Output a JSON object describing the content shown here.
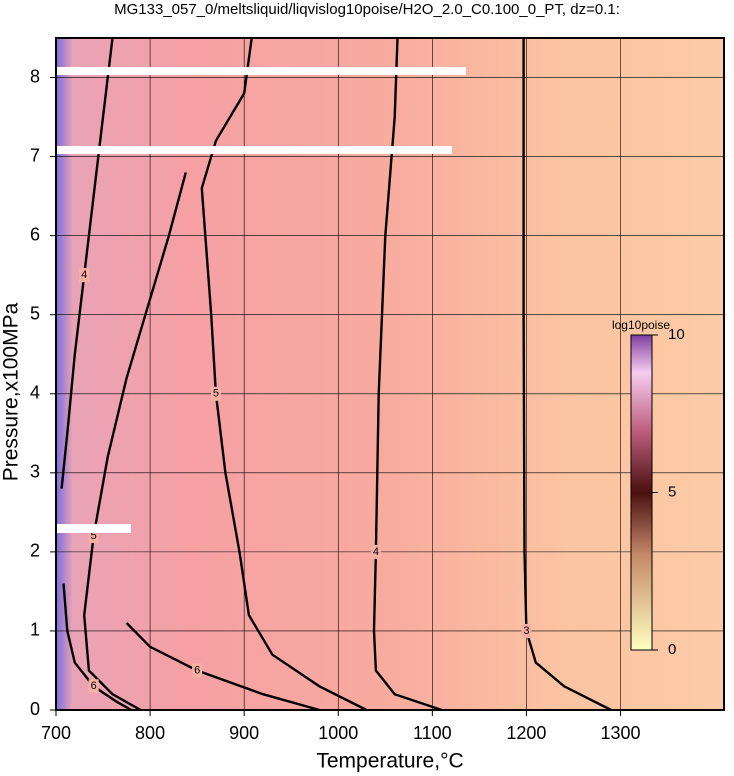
{
  "chart_data": {
    "type": "contour",
    "title": "MG133_057_0/meltsliquid/liqvislog10poise/H2O_2.0_C0.100_0_PT, dz=0.1:",
    "xlabel": "Temperature,°C",
    "ylabel": "Pressure,x100MPa",
    "xlim": [
      700,
      1410
    ],
    "ylim": [
      0,
      8.5
    ],
    "xticks": [
      700,
      800,
      900,
      1000,
      1100,
      1200,
      1300
    ],
    "yticks": [
      0,
      1,
      2,
      3,
      4,
      5,
      6,
      7,
      8
    ],
    "grid": true,
    "contours": [
      {
        "level": 3,
        "x": [
          1197,
          1197,
          1197,
          1198,
          1200,
          1210,
          1240,
          1290
        ],
        "y": [
          8.5,
          7,
          5,
          2,
          1,
          0.6,
          0.3,
          0
        ]
      },
      {
        "level": 4,
        "x": [
          1063,
          1060,
          1050,
          1043,
          1040,
          1038,
          1040,
          1060,
          1110
        ],
        "y": [
          8.5,
          7.5,
          6,
          4,
          2,
          1,
          0.5,
          0.2,
          0
        ]
      },
      {
        "level": 5,
        "x": [
          908,
          900,
          870,
          855,
          860,
          865,
          870,
          880,
          895,
          905,
          930,
          980,
          1030
        ],
        "y": [
          8.5,
          7.8,
          7.2,
          6.6,
          5.8,
          5,
          4,
          3,
          2,
          1.2,
          0.7,
          0.3,
          0
        ]
      },
      {
        "level": 5,
        "x": [
          838,
          820,
          795,
          775,
          755,
          740,
          730,
          735,
          760,
          790
        ],
        "y": [
          6.8,
          6,
          5,
          4.2,
          3.2,
          2.2,
          1.2,
          0.5,
          0.2,
          0
        ]
      },
      {
        "level": 4,
        "x": [
          760,
          750,
          740,
          730,
          720,
          712,
          706
        ],
        "y": [
          8.5,
          7.5,
          6.5,
          5.5,
          4.5,
          3.5,
          2.8
        ]
      },
      {
        "level": 6,
        "x": [
          775,
          800,
          850,
          920,
          980
        ],
        "y": [
          1.1,
          0.8,
          0.5,
          0.2,
          0
        ]
      },
      {
        "level": 6,
        "x": [
          708,
          712,
          720,
          740,
          765,
          780
        ],
        "y": [
          1.6,
          1,
          0.6,
          0.3,
          0.1,
          0
        ]
      }
    ],
    "colorbar": {
      "label": "log10poise",
      "lim": [
        0,
        10
      ],
      "ticks": [
        0,
        5,
        10
      ]
    }
  }
}
